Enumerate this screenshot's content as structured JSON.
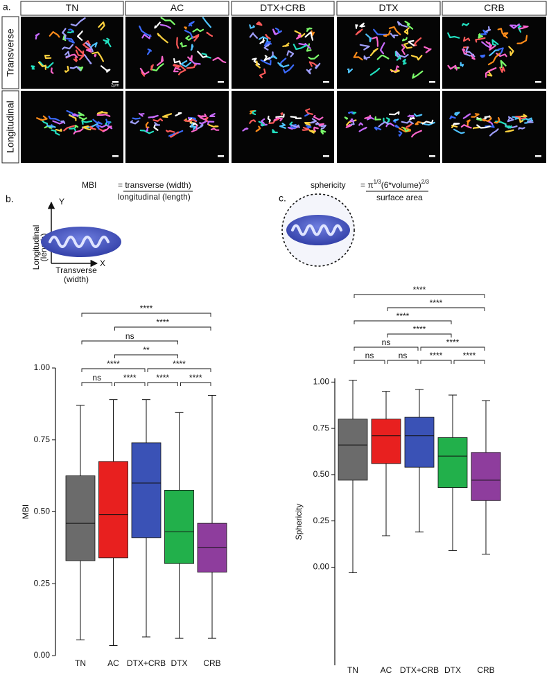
{
  "panel_a": {
    "label": "a.",
    "columns": [
      "TN",
      "AC",
      "DTX+CRB",
      "DTX",
      "CRB"
    ],
    "rows": [
      "Transverse",
      "Longitudinal"
    ],
    "scale_bar": "2μm"
  },
  "panel_b": {
    "label": "b.",
    "term": "MBI",
    "numerator": "= transverse (width)",
    "denominator": "longitudinal (length)",
    "y_arrow": "Y",
    "x_arrow": "X",
    "y_axis_text": [
      "Longitudinal",
      "(length)"
    ],
    "x_axis_text": [
      "Transverse",
      "(width)"
    ]
  },
  "panel_c": {
    "label": "c.",
    "term": "sphericity",
    "numerator": [
      "= π",
      "1/3",
      "(6*volume)",
      "2/3"
    ],
    "denominator": "surface area"
  },
  "chart_data": [
    {
      "type": "box",
      "y_label": "MBI",
      "categories": [
        "TN",
        "AC",
        "DTX+CRB",
        "DTX",
        "CRB"
      ],
      "boxes": [
        {
          "color": "#6b6b6b",
          "min": 0.055,
          "q1": 0.33,
          "median": 0.46,
          "q3": 0.625,
          "max": 0.87
        },
        {
          "color": "#e8201f",
          "min": 0.035,
          "q1": 0.34,
          "median": 0.49,
          "q3": 0.675,
          "max": 0.89
        },
        {
          "color": "#3a52b6",
          "min": 0.065,
          "q1": 0.41,
          "median": 0.6,
          "q3": 0.74,
          "max": 0.89
        },
        {
          "color": "#22b04b",
          "min": 0.06,
          "q1": 0.32,
          "median": 0.43,
          "q3": 0.575,
          "max": 0.845
        },
        {
          "color": "#8e3d9d",
          "min": 0.06,
          "q1": 0.29,
          "median": 0.375,
          "q3": 0.46,
          "max": 0.905
        }
      ],
      "ylim": [
        0,
        1
      ],
      "yticks": [
        {
          "value": 0,
          "label": "0.00"
        },
        {
          "value": 0.25,
          "label": "0.25"
        },
        {
          "value": 0.5,
          "label": "0.50"
        },
        {
          "value": 0.75,
          "label": "0.75"
        },
        {
          "value": 1,
          "label": "1.00"
        }
      ],
      "comparisons": [
        {
          "from": "TN",
          "to": "AC",
          "label": "ns"
        },
        {
          "from": "AC",
          "to": "DTX+CRB",
          "label": "****"
        },
        {
          "from": "DTX+CRB",
          "to": "DTX",
          "label": "****"
        },
        {
          "from": "DTX",
          "to": "CRB",
          "label": "****"
        },
        {
          "from": "TN",
          "to": "DTX+CRB",
          "label": "****"
        },
        {
          "from": "DTX+CRB",
          "to": "CRB",
          "label": "****"
        },
        {
          "from": "AC",
          "to": "DTX",
          "label": "**"
        },
        {
          "from": "TN",
          "to": "DTX",
          "label": "ns"
        },
        {
          "from": "AC",
          "to": "CRB",
          "label": "****"
        },
        {
          "from": "TN",
          "to": "CRB",
          "label": "****"
        }
      ]
    },
    {
      "type": "box",
      "y_label": "Sphericity",
      "categories": [
        "TN",
        "AC",
        "DTX+CRB",
        "DTX",
        "CRB"
      ],
      "boxes": [
        {
          "color": "#6b6b6b",
          "min": -0.03,
          "q1": 0.47,
          "median": 0.66,
          "q3": 0.8,
          "max": 1.01
        },
        {
          "color": "#e8201f",
          "min": 0.17,
          "q1": 0.56,
          "median": 0.71,
          "q3": 0.8,
          "max": 0.95
        },
        {
          "color": "#3a52b6",
          "min": 0.19,
          "q1": 0.54,
          "median": 0.71,
          "q3": 0.81,
          "max": 0.96
        },
        {
          "color": "#22b04b",
          "min": 0.09,
          "q1": 0.43,
          "median": 0.6,
          "q3": 0.7,
          "max": 0.93
        },
        {
          "color": "#8e3d9d",
          "min": 0.07,
          "q1": 0.36,
          "median": 0.47,
          "q3": 0.62,
          "max": 0.9
        }
      ],
      "ylim": [
        -0.53,
        1.02
      ],
      "yticks": [
        {
          "value": 0,
          "label": "0.00"
        },
        {
          "value": 0.25,
          "label": "0.25"
        },
        {
          "value": 0.5,
          "label": "0.50"
        },
        {
          "value": 0.75,
          "label": "0.75"
        },
        {
          "value": 1,
          "label": "1.00"
        }
      ],
      "comparisons": [
        {
          "from": "TN",
          "to": "AC",
          "label": "ns"
        },
        {
          "from": "AC",
          "to": "DTX+CRB",
          "label": "ns"
        },
        {
          "from": "DTX+CRB",
          "to": "DTX",
          "label": "****"
        },
        {
          "from": "DTX",
          "to": "CRB",
          "label": "****"
        },
        {
          "from": "TN",
          "to": "DTX+CRB",
          "label": "ns"
        },
        {
          "from": "DTX+CRB",
          "to": "CRB",
          "label": "****"
        },
        {
          "from": "AC",
          "to": "DTX",
          "label": "****"
        },
        {
          "from": "TN",
          "to": "DTX",
          "label": "****"
        },
        {
          "from": "AC",
          "to": "CRB",
          "label": "****"
        },
        {
          "from": "TN",
          "to": "CRB",
          "label": "****"
        }
      ]
    }
  ]
}
